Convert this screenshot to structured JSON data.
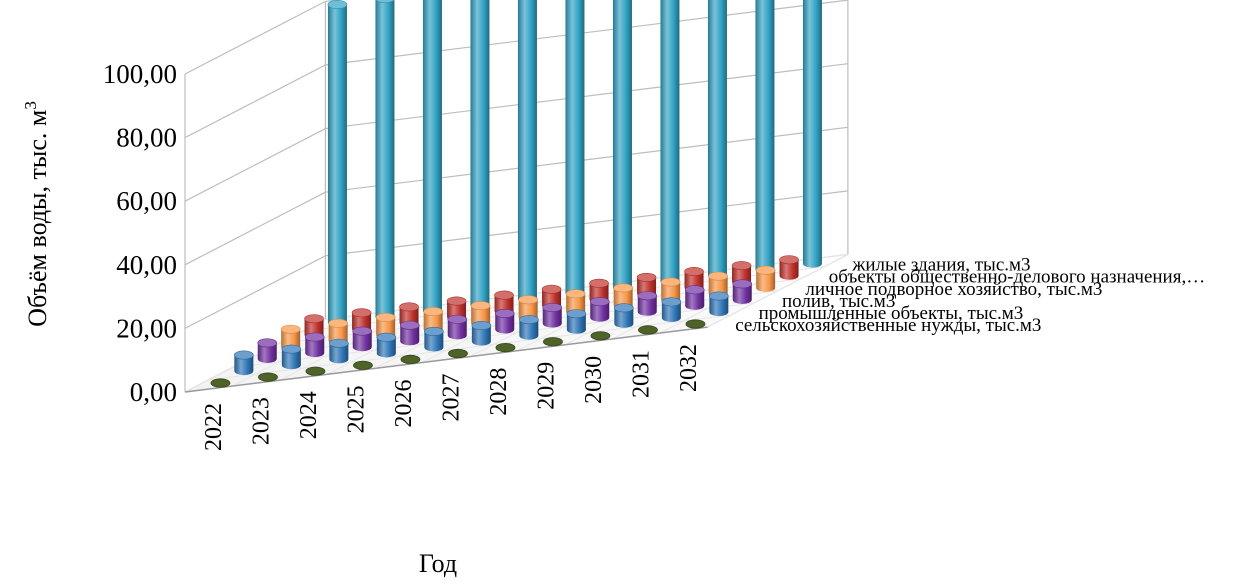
{
  "chart_data": {
    "type": "bar",
    "style": "3d-cylinder",
    "title": "",
    "xlabel": "Год",
    "ylabel": "Объём воды, тыс. м",
    "ylabel_superscript": "3",
    "ylim": [
      0,
      100
    ],
    "yticks": [
      "0,00",
      "20,00",
      "40,00",
      "60,00",
      "80,00",
      "100,00"
    ],
    "grid": true,
    "categories": [
      "2022",
      "2023",
      "2024",
      "2025",
      "2026",
      "2027",
      "2028",
      "2029",
      "2030",
      "2031",
      "2032"
    ],
    "series": [
      {
        "name": "сельскохозяйственные нужды, тыс.м3",
        "color": "#4f6228",
        "values": [
          0,
          0,
          0,
          0,
          0,
          0,
          0,
          0,
          0,
          0,
          0
        ]
      },
      {
        "name": "промышленные объекты, тыс.м3",
        "color": "#2e75b6",
        "values": [
          5,
          5,
          5,
          5,
          5,
          5,
          5,
          5,
          5,
          5,
          5
        ]
      },
      {
        "name": "полив, тыс.м3",
        "color": "#7030a0",
        "values": [
          5,
          5,
          5,
          5,
          5,
          5,
          5,
          5,
          5,
          5,
          5
        ]
      },
      {
        "name": "личное подворное хозяйство, тыс.м3",
        "color": "#f79646",
        "values": [
          5.5,
          5.5,
          5.5,
          5.5,
          5.5,
          5.5,
          5.5,
          5.5,
          5.5,
          5.5,
          5.5
        ]
      },
      {
        "name": "объекты общественно-делового назначения,…",
        "color": "#c0312b",
        "values": [
          5,
          5,
          5,
          5,
          5,
          5,
          5,
          5,
          5,
          5,
          5
        ]
      },
      {
        "name": "жилые здания, тыс.м3",
        "color": "#31a2c4",
        "values": [
          100,
          100,
          100,
          100,
          100,
          100,
          100,
          100,
          100,
          100,
          100
        ]
      }
    ]
  }
}
